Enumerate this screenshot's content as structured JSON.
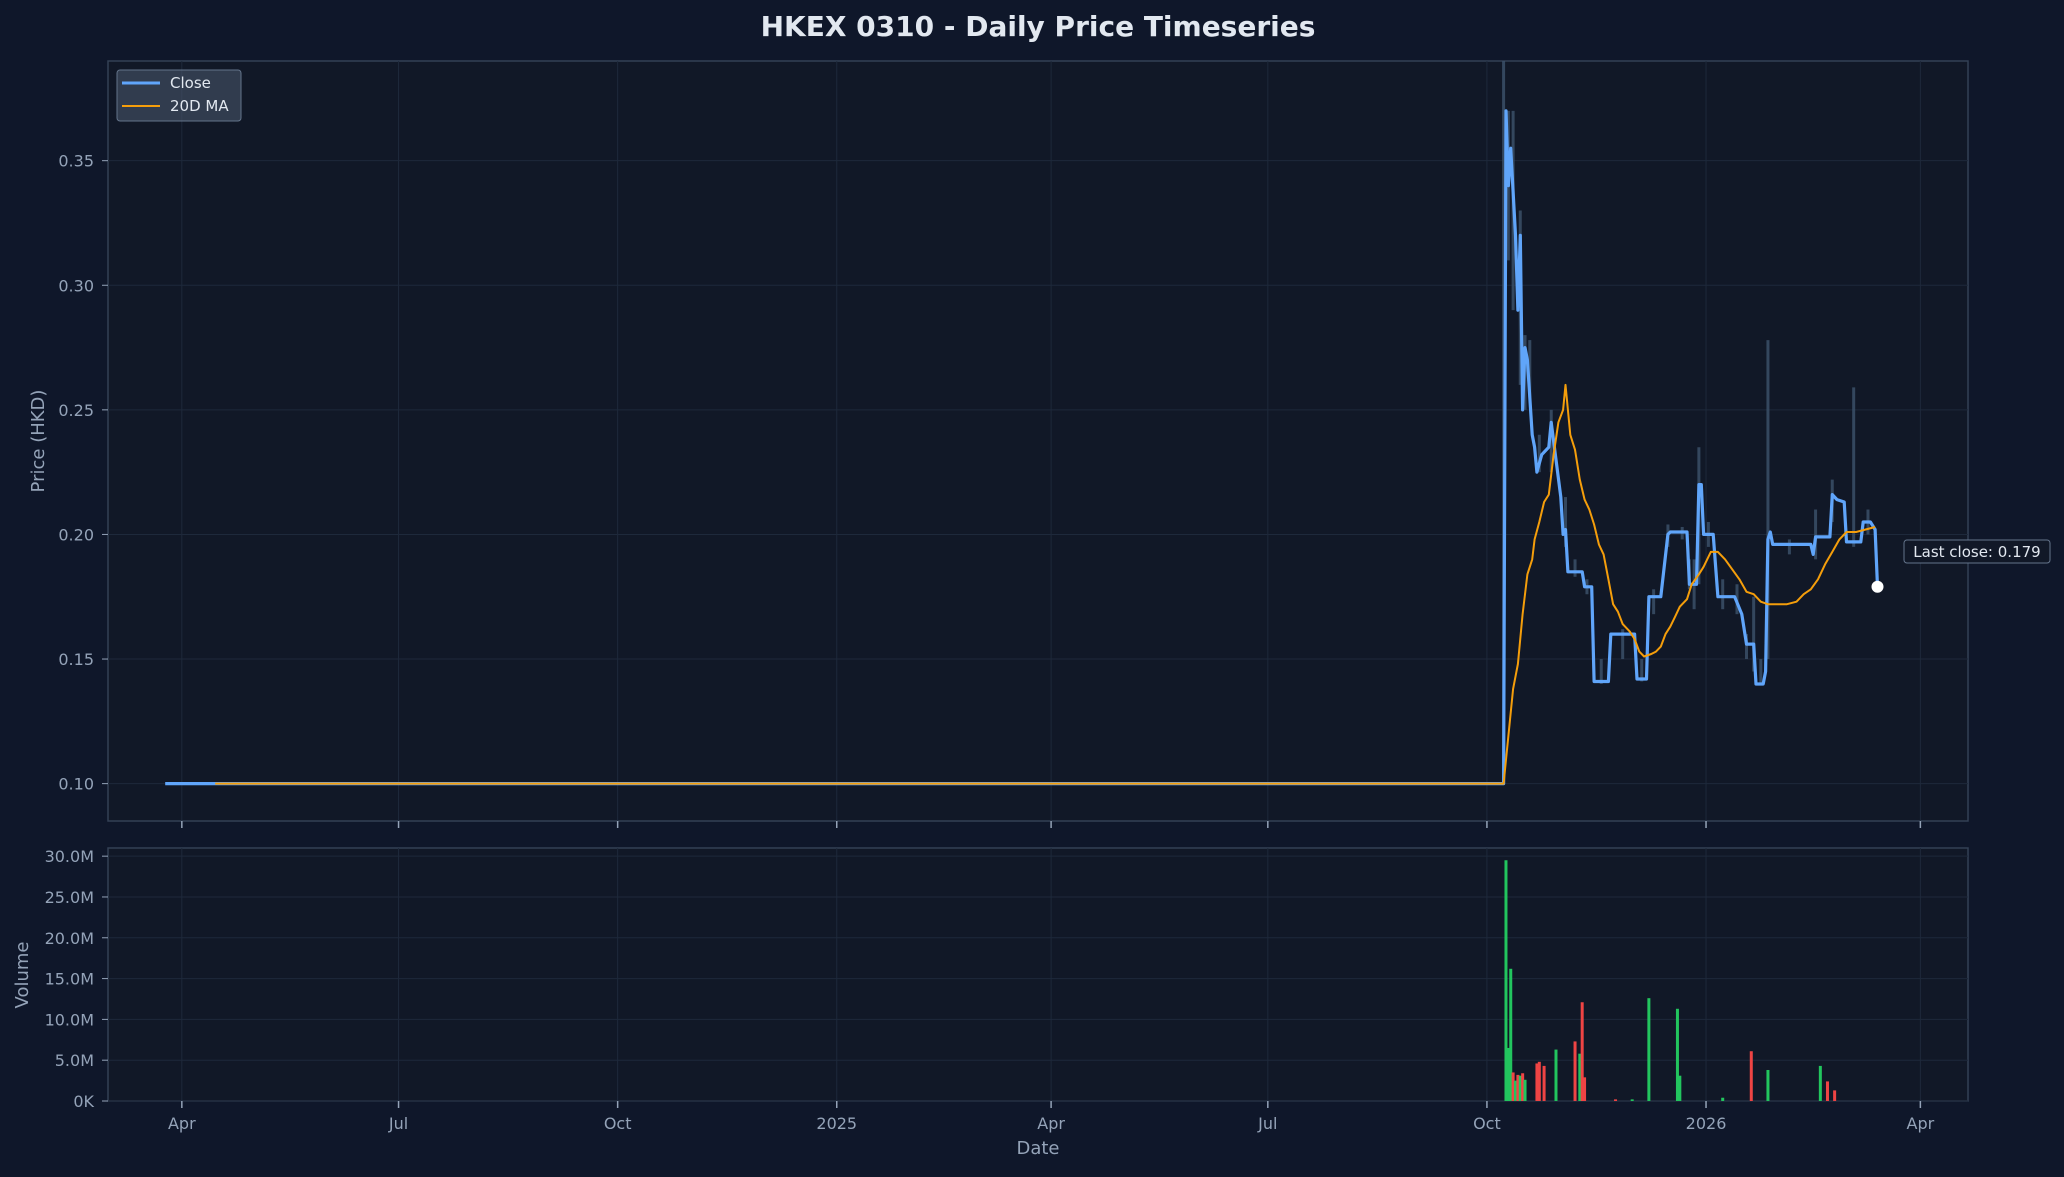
{
  "chart_data": [
    {
      "type": "line",
      "title": "HKEX 0310 - Daily Price Timeseries",
      "ylabel": "Price (HKD)",
      "xlabel": "",
      "ylim": [
        0.085,
        0.39
      ],
      "xlim": [
        "2024-03-01",
        "2026-04-21"
      ],
      "ytick_values": [
        0.1,
        0.15,
        0.2,
        0.25,
        0.3,
        0.35
      ],
      "ytick_labels": [
        "0.10",
        "0.15",
        "0.20",
        "0.25",
        "0.30",
        "0.35"
      ],
      "grid": true,
      "legend": {
        "position": "top-left",
        "entries": [
          "Close",
          "20D MA"
        ]
      },
      "colors": {
        "close": "#60a5fa",
        "ma": "#f59e0b",
        "band": "#3b5068"
      },
      "annotation": {
        "text": "Last close: 0.179",
        "date": "2026-03-25",
        "value": 0.179
      },
      "series": [
        {
          "name": "Close",
          "points": [
            [
              "2024-03-25",
              0.1
            ],
            [
              "2024-04-15",
              0.1
            ],
            [
              "2024-10-31",
              0.1
            ],
            [
              "2025-06-30",
              0.1
            ],
            [
              "2025-10-08",
              0.1
            ],
            [
              "2025-10-09",
              0.37
            ],
            [
              "2025-10-10",
              0.34
            ],
            [
              "2025-10-11",
              0.355
            ],
            [
              "2025-10-13",
              0.32
            ],
            [
              "2025-10-14",
              0.29
            ],
            [
              "2025-10-15",
              0.32
            ],
            [
              "2025-10-16",
              0.25
            ],
            [
              "2025-10-17",
              0.275
            ],
            [
              "2025-10-18",
              0.27
            ],
            [
              "2025-10-20",
              0.24
            ],
            [
              "2025-10-21",
              0.235
            ],
            [
              "2025-10-22",
              0.225
            ],
            [
              "2025-10-24",
              0.232
            ],
            [
              "2025-10-27",
              0.235
            ],
            [
              "2025-10-28",
              0.245
            ],
            [
              "2025-10-30",
              0.23
            ],
            [
              "2025-11-01",
              0.215
            ],
            [
              "2025-11-02",
              0.2
            ],
            [
              "2025-11-03",
              0.202
            ],
            [
              "2025-11-04",
              0.185
            ],
            [
              "2025-11-10",
              0.185
            ],
            [
              "2025-11-11",
              0.179
            ],
            [
              "2025-11-14",
              0.179
            ],
            [
              "2025-11-15",
              0.141
            ],
            [
              "2025-11-21",
              0.141
            ],
            [
              "2025-11-22",
              0.16
            ],
            [
              "2025-12-02",
              0.16
            ],
            [
              "2025-12-03",
              0.142
            ],
            [
              "2025-12-07",
              0.142
            ],
            [
              "2025-12-08",
              0.175
            ],
            [
              "2025-12-13",
              0.175
            ],
            [
              "2025-12-16",
              0.2
            ],
            [
              "2025-12-17",
              0.201
            ],
            [
              "2025-12-24",
              0.201
            ],
            [
              "2025-12-25",
              0.18
            ],
            [
              "2025-12-28",
              0.18
            ],
            [
              "2025-12-29",
              0.22
            ],
            [
              "2025-12-30",
              0.22
            ],
            [
              "2025-12-31",
              0.2
            ],
            [
              "2026-01-04",
              0.2
            ],
            [
              "2026-01-06",
              0.175
            ],
            [
              "2026-01-13",
              0.175
            ],
            [
              "2026-01-16",
              0.168
            ],
            [
              "2026-01-18",
              0.156
            ],
            [
              "2026-01-21",
              0.156
            ],
            [
              "2026-01-22",
              0.14
            ],
            [
              "2026-01-25",
              0.14
            ],
            [
              "2026-01-26",
              0.145
            ],
            [
              "2026-01-27",
              0.198
            ],
            [
              "2026-01-28",
              0.201
            ],
            [
              "2026-01-29",
              0.196
            ],
            [
              "2026-02-14",
              0.196
            ],
            [
              "2026-02-15",
              0.192
            ],
            [
              "2026-02-16",
              0.199
            ],
            [
              "2026-02-22",
              0.199
            ],
            [
              "2026-02-23",
              0.216
            ],
            [
              "2026-02-25",
              0.214
            ],
            [
              "2026-02-28",
              0.213
            ],
            [
              "2026-03-01",
              0.197
            ],
            [
              "2026-03-07",
              0.197
            ],
            [
              "2026-03-08",
              0.205
            ],
            [
              "2026-03-11",
              0.205
            ],
            [
              "2026-03-13",
              0.202
            ],
            [
              "2026-03-14",
              0.179
            ]
          ]
        },
        {
          "name": "20D MA",
          "points": [
            [
              "2024-04-15",
              0.1
            ],
            [
              "2024-10-31",
              0.1
            ],
            [
              "2025-06-30",
              0.1
            ],
            [
              "2025-10-08",
              0.1
            ],
            [
              "2025-10-12",
              0.138
            ],
            [
              "2025-10-14",
              0.148
            ],
            [
              "2025-10-16",
              0.168
            ],
            [
              "2025-10-18",
              0.184
            ],
            [
              "2025-10-20",
              0.19
            ],
            [
              "2025-10-21",
              0.198
            ],
            [
              "2025-10-23",
              0.205
            ],
            [
              "2025-10-25",
              0.213
            ],
            [
              "2025-10-27",
              0.216
            ],
            [
              "2025-10-29",
              0.232
            ],
            [
              "2025-10-31",
              0.245
            ],
            [
              "2025-11-02",
              0.25
            ],
            [
              "2025-11-03",
              0.26
            ],
            [
              "2025-11-05",
              0.24
            ],
            [
              "2025-11-07",
              0.234
            ],
            [
              "2025-11-09",
              0.222
            ],
            [
              "2025-11-11",
              0.214
            ],
            [
              "2025-11-13",
              0.21
            ],
            [
              "2025-11-15",
              0.204
            ],
            [
              "2025-11-17",
              0.196
            ],
            [
              "2025-11-19",
              0.192
            ],
            [
              "2025-11-21",
              0.182
            ],
            [
              "2025-11-23",
              0.172
            ],
            [
              "2025-11-25",
              0.169
            ],
            [
              "2025-11-27",
              0.164
            ],
            [
              "2025-11-30",
              0.161
            ],
            [
              "2025-12-02",
              0.158
            ],
            [
              "2025-12-04",
              0.153
            ],
            [
              "2025-12-06",
              0.151
            ],
            [
              "2025-12-09",
              0.152
            ],
            [
              "2025-12-11",
              0.153
            ],
            [
              "2025-12-13",
              0.155
            ],
            [
              "2025-12-15",
              0.16
            ],
            [
              "2025-12-17",
              0.163
            ],
            [
              "2025-12-19",
              0.167
            ],
            [
              "2025-12-21",
              0.171
            ],
            [
              "2025-12-24",
              0.174
            ],
            [
              "2025-12-26",
              0.18
            ],
            [
              "2025-12-29",
              0.184
            ],
            [
              "2025-12-31",
              0.187
            ],
            [
              "2026-01-03",
              0.193
            ],
            [
              "2026-01-06",
              0.193
            ],
            [
              "2026-01-09",
              0.19
            ],
            [
              "2026-01-12",
              0.186
            ],
            [
              "2026-01-15",
              0.182
            ],
            [
              "2026-01-18",
              0.177
            ],
            [
              "2026-01-21",
              0.176
            ],
            [
              "2026-01-24",
              0.173
            ],
            [
              "2026-01-27",
              0.172
            ],
            [
              "2026-01-31",
              0.172
            ],
            [
              "2026-02-04",
              0.172
            ],
            [
              "2026-02-08",
              0.173
            ],
            [
              "2026-02-11",
              0.176
            ],
            [
              "2026-02-14",
              0.178
            ],
            [
              "2026-02-17",
              0.182
            ],
            [
              "2026-02-20",
              0.188
            ],
            [
              "2026-02-23",
              0.193
            ],
            [
              "2026-02-26",
              0.198
            ],
            [
              "2026-03-01",
              0.201
            ],
            [
              "2026-03-05",
              0.201
            ],
            [
              "2026-03-09",
              0.202
            ],
            [
              "2026-03-13",
              0.203
            ]
          ]
        }
      ],
      "range_spikes": [
        [
          "2025-10-08",
          0.1,
          0.39
        ],
        [
          "2025-10-10",
          0.31,
          0.37
        ],
        [
          "2025-10-12",
          0.29,
          0.37
        ],
        [
          "2025-10-15",
          0.26,
          0.33
        ],
        [
          "2025-10-17",
          0.25,
          0.28
        ],
        [
          "2025-10-19",
          0.255,
          0.278
        ],
        [
          "2025-10-23",
          0.225,
          0.24
        ],
        [
          "2025-10-28",
          0.225,
          0.25
        ],
        [
          "2025-11-03",
          0.195,
          0.215
        ],
        [
          "2025-11-07",
          0.183,
          0.19
        ],
        [
          "2025-11-12",
          0.176,
          0.182
        ],
        [
          "2025-11-18",
          0.14,
          0.15
        ],
        [
          "2025-11-27",
          0.15,
          0.162
        ],
        [
          "2025-12-05",
          0.141,
          0.15
        ],
        [
          "2025-12-10",
          0.168,
          0.178
        ],
        [
          "2025-12-16",
          0.195,
          0.204
        ],
        [
          "2025-12-22",
          0.198,
          0.203
        ],
        [
          "2025-12-25",
          0.178,
          0.19
        ],
        [
          "2025-12-27",
          0.17,
          0.19
        ],
        [
          "2025-12-29",
          0.18,
          0.235
        ],
        [
          "2026-01-02",
          0.195,
          0.205
        ],
        [
          "2026-01-08",
          0.17,
          0.182
        ],
        [
          "2026-01-14",
          0.168,
          0.18
        ],
        [
          "2026-01-18",
          0.15,
          0.16
        ],
        [
          "2026-01-21",
          0.145,
          0.175
        ],
        [
          "2026-01-24",
          0.14,
          0.15
        ],
        [
          "2026-01-27",
          0.15,
          0.278
        ],
        [
          "2026-02-05",
          0.192,
          0.198
        ],
        [
          "2026-02-16",
          0.19,
          0.21
        ],
        [
          "2026-02-23",
          0.205,
          0.222
        ],
        [
          "2026-03-04",
          0.195,
          0.259
        ],
        [
          "2026-03-10",
          0.2,
          0.21
        ]
      ]
    },
    {
      "type": "bar",
      "title": "",
      "ylabel": "Volume",
      "xlabel": "Date",
      "ylim": [
        0,
        31000000
      ],
      "ytick_values": [
        0,
        5000000,
        10000000,
        15000000,
        20000000,
        25000000,
        30000000
      ],
      "ytick_labels": [
        "0K",
        "5.0M",
        "10.0M",
        "15.0M",
        "20.0M",
        "25.0M",
        "30.0M"
      ],
      "xtick_values": [
        "2024-04-01",
        "2024-07-01",
        "2024-10-01",
        "2025-01-01",
        "2025-04-01",
        "2025-07-01",
        "2025-10-01",
        "2026-01-01",
        "2026-04-01"
      ],
      "xtick_labels": [
        "Apr",
        "Jul",
        "Oct",
        "2025",
        "Apr",
        "Jul",
        "Oct",
        "2026",
        "Apr"
      ],
      "grid": true,
      "colors": {
        "up": "#22c55e",
        "down": "#ef4444"
      },
      "bars": [
        [
          "2025-10-09",
          29500000,
          "up"
        ],
        [
          "2025-10-10",
          6500000,
          "up"
        ],
        [
          "2025-10-11",
          16200000,
          "up"
        ],
        [
          "2025-10-12",
          3500000,
          "down"
        ],
        [
          "2025-10-13",
          2500000,
          "up"
        ],
        [
          "2025-10-14",
          3200000,
          "down"
        ],
        [
          "2025-10-15",
          3100000,
          "up"
        ],
        [
          "2025-10-16",
          3400000,
          "down"
        ],
        [
          "2025-10-17",
          2600000,
          "up"
        ],
        [
          "2025-10-22",
          4600000,
          "down"
        ],
        [
          "2025-10-23",
          4800000,
          "down"
        ],
        [
          "2025-10-25",
          4300000,
          "down"
        ],
        [
          "2025-10-30",
          6300000,
          "up"
        ],
        [
          "2025-11-07",
          7300000,
          "down"
        ],
        [
          "2025-11-09",
          5800000,
          "up"
        ],
        [
          "2025-11-10",
          12100000,
          "down"
        ],
        [
          "2025-11-11",
          2900000,
          "down"
        ],
        [
          "2025-11-24",
          200000,
          "down"
        ],
        [
          "2025-12-01",
          200000,
          "up"
        ],
        [
          "2025-12-08",
          12600000,
          "up"
        ],
        [
          "2025-12-20",
          11300000,
          "up"
        ],
        [
          "2025-12-21",
          3100000,
          "up"
        ],
        [
          "2026-01-08",
          400000,
          "up"
        ],
        [
          "2026-01-20",
          6100000,
          "down"
        ],
        [
          "2026-01-27",
          3800000,
          "up"
        ],
        [
          "2026-02-18",
          4300000,
          "up"
        ],
        [
          "2026-02-21",
          2400000,
          "down"
        ],
        [
          "2026-02-24",
          1300000,
          "down"
        ]
      ]
    }
  ]
}
